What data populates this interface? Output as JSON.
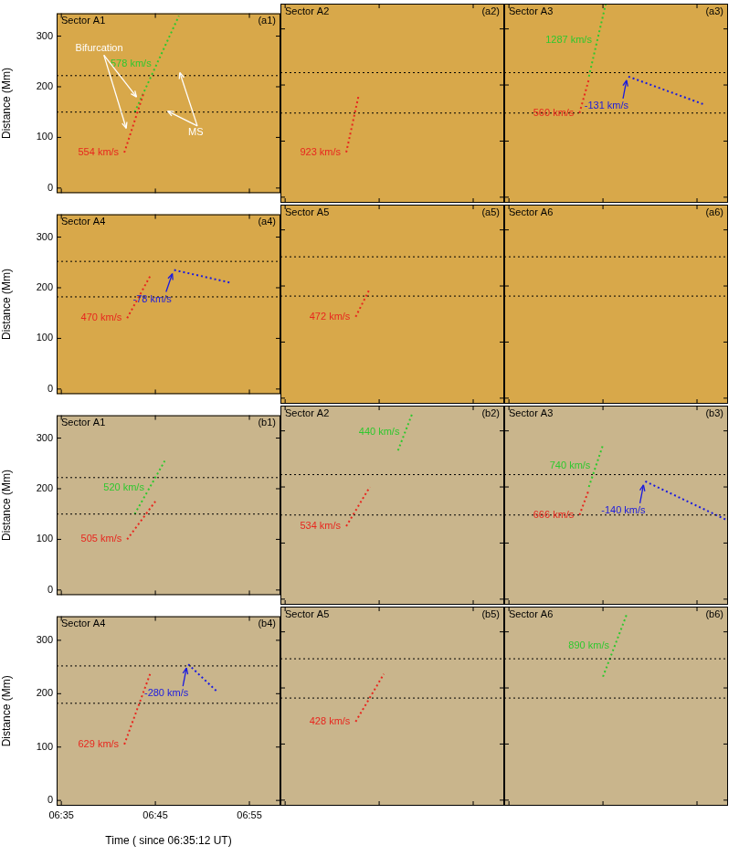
{
  "chart_data": [
    {
      "type": "line",
      "title": "Sector A1",
      "panel": "(a1)",
      "color": "#d8a84a",
      "grid": false,
      "tick_labels": "y",
      "ylabel": "Distance (Mm)",
      "xlim": [
        -0.5,
        23.3
      ],
      "xticks": [
        {
          "value": 0,
          "label": "06:35"
        },
        {
          "value": 10,
          "label": "06:45"
        },
        {
          "value": 20,
          "label": "06:55"
        }
      ],
      "ylim": [
        -10,
        345
      ],
      "yticks": [
        0,
        100,
        200,
        300
      ],
      "hlines": [
        150,
        222
      ],
      "series": [
        {
          "name": "554 km/s",
          "color": "#e8261e",
          "line_style": "dotted",
          "x": [
            6.7,
            8.8
          ],
          "values": [
            70,
            190
          ]
        },
        {
          "name": "578 km/s",
          "color": "#2ec82e",
          "line_style": "dotted",
          "x": [
            7.8,
            12.5
          ],
          "values": [
            150,
            340
          ]
        }
      ],
      "annotations": [
        {
          "text": "Bifurcation",
          "x": 1.5,
          "y": 275,
          "arrows": [
            [
              8.0,
              180
            ],
            [
              6.9,
              118
            ]
          ]
        },
        {
          "text": "MS",
          "x": 13.5,
          "y": 110,
          "arrows": [
            [
              12.6,
              228
            ],
            [
              11.3,
              152
            ]
          ]
        }
      ]
    },
    {
      "type": "line",
      "title": "Sector A2",
      "panel": "(a2)",
      "color": "#d8a84a",
      "grid": false,
      "tick_labels": false,
      "xlim": [
        -0.5,
        23.3
      ],
      "xticks": [
        {
          "value": 0,
          "label": "06:35"
        },
        {
          "value": 10,
          "label": "06:45"
        },
        {
          "value": 20,
          "label": "06:55"
        }
      ],
      "ylim": [
        -10,
        345
      ],
      "yticks": [
        0,
        100,
        200,
        300
      ],
      "hlines": [
        150,
        222
      ],
      "series": [
        {
          "name": "923 km/s",
          "color": "#e8261e",
          "line_style": "dotted",
          "x": [
            6.5,
            7.8
          ],
          "values": [
            80,
            180
          ]
        }
      ]
    },
    {
      "type": "line",
      "title": "Sector A3",
      "panel": "(a3)",
      "color": "#d8a84a",
      "grid": false,
      "tick_labels": false,
      "xlim": [
        -0.5,
        23.3
      ],
      "xticks": [
        {
          "value": 0,
          "label": "06:35"
        },
        {
          "value": 10,
          "label": "06:45"
        },
        {
          "value": 20,
          "label": "06:55"
        }
      ],
      "ylim": [
        -10,
        345
      ],
      "yticks": [
        0,
        100,
        200,
        300
      ],
      "hlines": [
        150,
        222
      ],
      "series": [
        {
          "name": "560 km/s",
          "color": "#e8261e",
          "line_style": "dotted",
          "x": [
            7.5,
            8.5
          ],
          "values": [
            150,
            210
          ]
        },
        {
          "name": "1287 km/s",
          "color": "#2ec82e",
          "line_style": "dotted",
          "x": [
            8.5,
            10.3
          ],
          "values": [
            215,
            345
          ]
        },
        {
          "name": "-131 km/s",
          "color": "#1a1ae0",
          "line_style": "dotted",
          "x": [
            12.7,
            20.8
          ],
          "values": [
            215,
            165
          ]
        }
      ]
    },
    {
      "type": "line",
      "title": "Sector A4",
      "panel": "(a4)",
      "color": "#d8a84a",
      "grid": false,
      "tick_labels": "y",
      "ylabel": "Distance (Mm)",
      "xlim": [
        -0.5,
        23.3
      ],
      "xticks": [
        {
          "value": 0,
          "label": "06:35"
        },
        {
          "value": 10,
          "label": "06:45"
        },
        {
          "value": 20,
          "label": "06:55"
        }
      ],
      "ylim": [
        -10,
        345
      ],
      "yticks": [
        0,
        100,
        200,
        300
      ],
      "hlines": [
        182,
        252
      ],
      "series": [
        {
          "name": "470 km/s",
          "color": "#e8261e",
          "line_style": "dotted",
          "x": [
            7.0,
            9.5
          ],
          "values": [
            140,
            225
          ]
        },
        {
          "name": "-78 km/s",
          "color": "#1a1ae0",
          "line_style": "dotted",
          "x": [
            12.0,
            18.0
          ],
          "values": [
            235,
            210
          ]
        }
      ]
    },
    {
      "type": "line",
      "title": "Sector A5",
      "panel": "(a5)",
      "color": "#d8a84a",
      "grid": false,
      "tick_labels": false,
      "xlim": [
        -0.5,
        23.3
      ],
      "xticks": [
        {
          "value": 0,
          "label": "06:35"
        },
        {
          "value": 10,
          "label": "06:45"
        },
        {
          "value": 20,
          "label": "06:55"
        }
      ],
      "ylim": [
        -10,
        345
      ],
      "yticks": [
        0,
        100,
        200,
        300
      ],
      "hlines": [
        182,
        252
      ],
      "series": [
        {
          "name": "472 km/s",
          "color": "#e8261e",
          "line_style": "dotted",
          "x": [
            7.5,
            9.0
          ],
          "values": [
            145,
            195
          ]
        }
      ]
    },
    {
      "type": "line",
      "title": "Sector A6",
      "panel": "(a6)",
      "color": "#d8a84a",
      "grid": false,
      "tick_labels": false,
      "xlim": [
        -0.5,
        23.3
      ],
      "xticks": [
        {
          "value": 0,
          "label": "06:35"
        },
        {
          "value": 10,
          "label": "06:45"
        },
        {
          "value": 20,
          "label": "06:55"
        }
      ],
      "ylim": [
        -10,
        345
      ],
      "yticks": [
        0,
        100,
        200,
        300
      ],
      "hlines": [
        182,
        252
      ],
      "series": []
    },
    {
      "type": "line",
      "title": "Sector A1",
      "panel": "(b1)",
      "color": "#c9b58c",
      "grid": false,
      "tick_labels": "y",
      "ylabel": "Distance (Mm)",
      "xlim": [
        -0.5,
        23.3
      ],
      "xticks": [
        {
          "value": 0,
          "label": "06:35"
        },
        {
          "value": 10,
          "label": "06:45"
        },
        {
          "value": 20,
          "label": "06:55"
        }
      ],
      "ylim": [
        -10,
        345
      ],
      "yticks": [
        0,
        100,
        200,
        300
      ],
      "hlines": [
        150,
        222
      ],
      "series": [
        {
          "name": "505 km/s",
          "color": "#e8261e",
          "line_style": "dotted",
          "x": [
            7.0,
            10.0
          ],
          "values": [
            100,
            175
          ]
        },
        {
          "name": "520 km/s",
          "color": "#2ec82e",
          "line_style": "dotted",
          "x": [
            7.8,
            11.0
          ],
          "values": [
            150,
            255
          ]
        }
      ]
    },
    {
      "type": "line",
      "title": "Sector A2",
      "panel": "(b2)",
      "color": "#c9b58c",
      "grid": false,
      "tick_labels": false,
      "xlim": [
        -0.5,
        23.3
      ],
      "xticks": [
        {
          "value": 0,
          "label": "06:35"
        },
        {
          "value": 10,
          "label": "06:45"
        },
        {
          "value": 20,
          "label": "06:55"
        }
      ],
      "ylim": [
        -10,
        345
      ],
      "yticks": [
        0,
        100,
        200,
        300
      ],
      "hlines": [
        150,
        222
      ],
      "series": [
        {
          "name": "534 km/s",
          "color": "#e8261e",
          "line_style": "dotted",
          "x": [
            6.5,
            9.0
          ],
          "values": [
            130,
            200
          ]
        },
        {
          "name": "440 km/s",
          "color": "#2ec82e",
          "line_style": "dotted",
          "x": [
            12.0,
            13.5
          ],
          "values": [
            265,
            330
          ]
        }
      ]
    },
    {
      "type": "line",
      "title": "Sector A3",
      "panel": "(b3)",
      "color": "#c9b58c",
      "grid": false,
      "tick_labels": false,
      "xlim": [
        -0.5,
        23.3
      ],
      "xticks": [
        {
          "value": 0,
          "label": "06:35"
        },
        {
          "value": 10,
          "label": "06:45"
        },
        {
          "value": 20,
          "label": "06:55"
        }
      ],
      "ylim": [
        -10,
        345
      ],
      "yticks": [
        0,
        100,
        200,
        300
      ],
      "hlines": [
        150,
        222
      ],
      "series": [
        {
          "name": "666 km/s",
          "color": "#e8261e",
          "line_style": "dotted",
          "x": [
            7.5,
            8.5
          ],
          "values": [
            150,
            195
          ]
        },
        {
          "name": "740 km/s",
          "color": "#2ec82e",
          "line_style": "dotted",
          "x": [
            8.5,
            10.0
          ],
          "values": [
            200,
            275
          ]
        },
        {
          "name": "-140 km/s",
          "color": "#1a1ae0",
          "line_style": "dotted",
          "x": [
            14.5,
            23.3
          ],
          "values": [
            210,
            140
          ]
        }
      ]
    },
    {
      "type": "line",
      "title": "Sector A4",
      "panel": "(b4)",
      "color": "#c9b58c",
      "grid": false,
      "tick_labels": true,
      "ylabel": "Distance (Mm)",
      "xlabel": "Time ( since 06:35:12 UT)",
      "xlim": [
        -0.5,
        23.3
      ],
      "xticks": [
        {
          "value": 0,
          "label": "06:35"
        },
        {
          "value": 10,
          "label": "06:45"
        },
        {
          "value": 20,
          "label": "06:55"
        }
      ],
      "ylim": [
        -10,
        345
      ],
      "yticks": [
        0,
        100,
        200,
        300
      ],
      "hlines": [
        182,
        252
      ],
      "series": [
        {
          "name": "629 km/s",
          "color": "#e8261e",
          "line_style": "dotted",
          "x": [
            6.7,
            9.5
          ],
          "values": [
            105,
            240
          ]
        },
        {
          "name": "-280 km/s",
          "color": "#1a1ae0",
          "line_style": "dotted",
          "x": [
            13.5,
            16.5
          ],
          "values": [
            255,
            205
          ]
        }
      ]
    },
    {
      "type": "line",
      "title": "Sector A5",
      "panel": "(b5)",
      "color": "#c9b58c",
      "grid": false,
      "tick_labels": false,
      "xlim": [
        -0.5,
        23.3
      ],
      "xticks": [
        {
          "value": 0,
          "label": "06:35"
        },
        {
          "value": 10,
          "label": "06:45"
        },
        {
          "value": 20,
          "label": "06:55"
        }
      ],
      "ylim": [
        -10,
        345
      ],
      "yticks": [
        0,
        100,
        200,
        300
      ],
      "hlines": [
        182,
        252
      ],
      "series": [
        {
          "name": "428 km/s",
          "color": "#e8261e",
          "line_style": "dotted",
          "x": [
            7.5,
            10.5
          ],
          "values": [
            140,
            225
          ]
        }
      ]
    },
    {
      "type": "line",
      "title": "Sector A6",
      "panel": "(b6)",
      "color": "#c9b58c",
      "grid": false,
      "tick_labels": false,
      "xlim": [
        -0.5,
        23.3
      ],
      "xticks": [
        {
          "value": 0,
          "label": "06:35"
        },
        {
          "value": 10,
          "label": "06:45"
        },
        {
          "value": 20,
          "label": "06:55"
        }
      ],
      "ylim": [
        -10,
        345
      ],
      "yticks": [
        0,
        100,
        200,
        300
      ],
      "hlines": [
        182,
        252
      ],
      "series": [
        {
          "name": "890 km/s",
          "color": "#2ec82e",
          "line_style": "dotted",
          "x": [
            10.0,
            12.5
          ],
          "values": [
            220,
            330
          ]
        }
      ]
    }
  ]
}
